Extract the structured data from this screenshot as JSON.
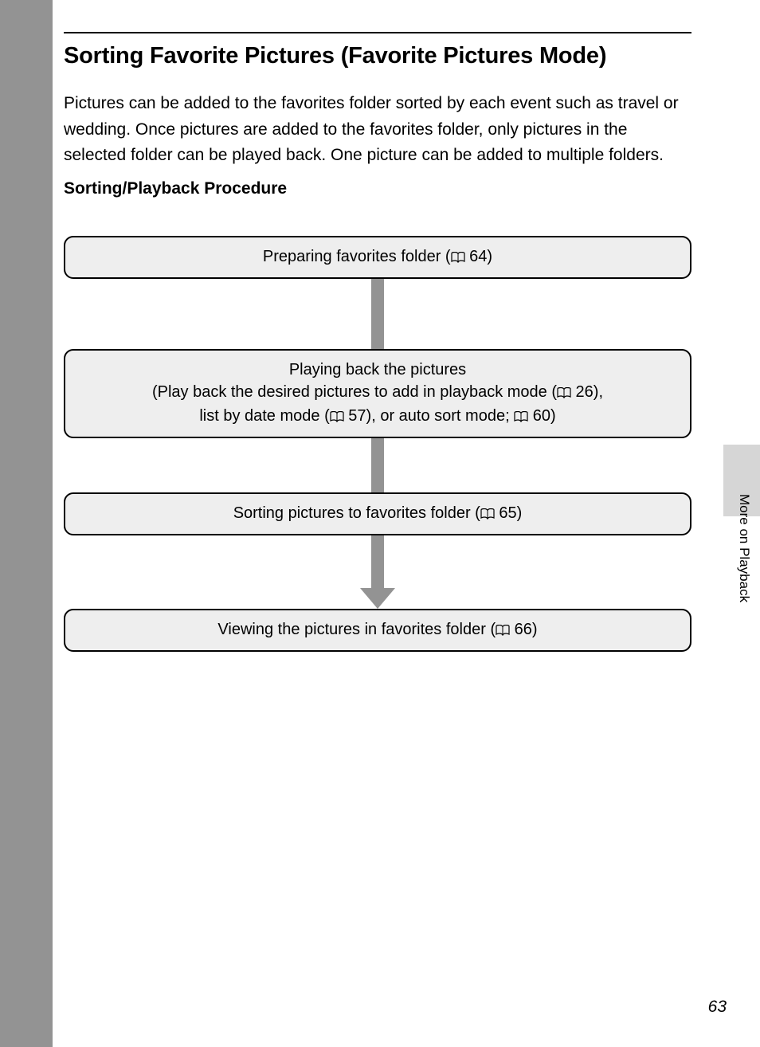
{
  "colors": {
    "page_bg": "#ffffff",
    "outer_bg": "#939393",
    "box_fill": "#eeeeee",
    "box_border": "#000000",
    "arrow_color": "#939393",
    "tab_bg": "#d6d6d6",
    "text_color": "#000000"
  },
  "title": "Sorting Favorite Pictures (Favorite Pictures Mode)",
  "intro": "Pictures can be added to the favorites folder sorted by each event such as travel or wedding. Once pictures are added to the favorites folder, only pictures in the selected folder can be played back. One picture can be added to multiple folders.",
  "subhead": "Sorting/Playback Procedure",
  "flow": {
    "type": "flowchart",
    "node_style": {
      "fill": "#eeeeee",
      "border_color": "#000000",
      "border_width": 2,
      "border_radius": 12,
      "font_size": 20,
      "padding": 10
    },
    "arrow_style": {
      "stem_width": 16,
      "stem_color": "#939393",
      "head_width": 44,
      "head_height": 26
    },
    "connector_heights": [
      88,
      68,
      66
    ],
    "last_has_arrowhead": true,
    "nodes": [
      {
        "lines": [
          {
            "parts": [
              {
                "t": "Preparing favorites folder ("
              },
              {
                "icon": "book"
              },
              {
                "t": " 64)"
              }
            ]
          }
        ]
      },
      {
        "lines": [
          {
            "parts": [
              {
                "t": "Playing back the pictures"
              }
            ]
          },
          {
            "parts": [
              {
                "t": "(Play back the desired pictures to add in playback mode ("
              },
              {
                "icon": "book"
              },
              {
                "t": " 26),"
              }
            ]
          },
          {
            "parts": [
              {
                "t": "list by date mode ("
              },
              {
                "icon": "book"
              },
              {
                "t": " 57), or auto sort mode; "
              },
              {
                "icon": "book"
              },
              {
                "t": " 60)"
              }
            ]
          }
        ]
      },
      {
        "lines": [
          {
            "parts": [
              {
                "t": "Sorting pictures to favorites folder ("
              },
              {
                "icon": "book"
              },
              {
                "t": " 65)"
              }
            ]
          }
        ]
      },
      {
        "lines": [
          {
            "parts": [
              {
                "t": "Viewing the pictures in favorites folder ("
              },
              {
                "icon": "book"
              },
              {
                "t": " 66)"
              }
            ]
          }
        ]
      }
    ]
  },
  "side_label": "More on Playback",
  "page_number": "63"
}
